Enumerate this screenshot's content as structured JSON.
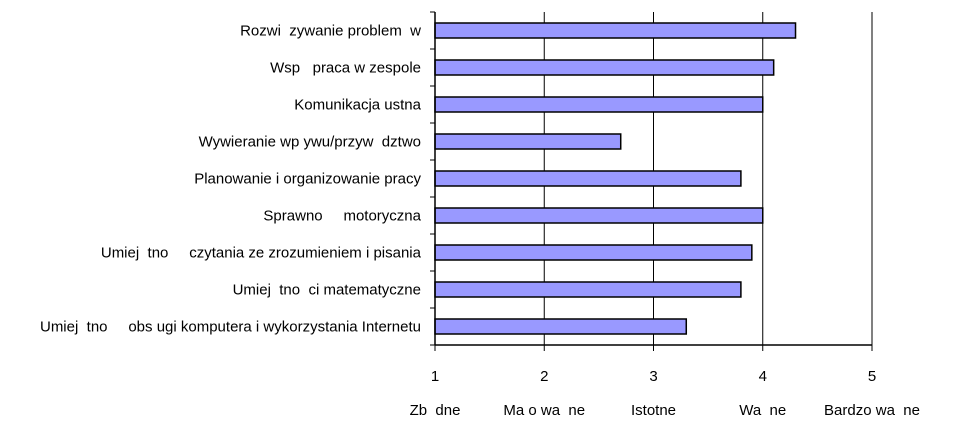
{
  "chart_data": {
    "type": "bar",
    "orientation": "horizontal",
    "categories": [
      "Rozwi  zywanie problem  w",
      "Wsp   praca w zespole",
      "Komunikacja ustna",
      "Wywieranie wp ywu/przyw  dztwo",
      "Planowanie i organizowanie pracy",
      "Sprawno     motoryczna",
      "Umiej  tno     czytania ze zrozumieniem i pisania",
      "Umiej  tno  ci matematyczne",
      "Umiej  tno     obs ugi komputera i wykorzystania Internetu"
    ],
    "values": [
      4.3,
      4.1,
      4.0,
      2.7,
      3.8,
      4.0,
      3.9,
      3.8,
      3.3
    ],
    "xlim": [
      1,
      5
    ],
    "xticks": [
      1,
      2,
      3,
      4,
      5
    ],
    "xtick_labels": [
      "1",
      "2",
      "3",
      "4",
      "5"
    ],
    "xtick_descriptions": [
      "Zb  dne",
      "Ma o wa  ne",
      "Istotne",
      "Wa  ne",
      "Bardzo wa  ne"
    ],
    "grid": "vertical",
    "bar_color": "#9999ff",
    "bar_edge_color": "#000000"
  }
}
